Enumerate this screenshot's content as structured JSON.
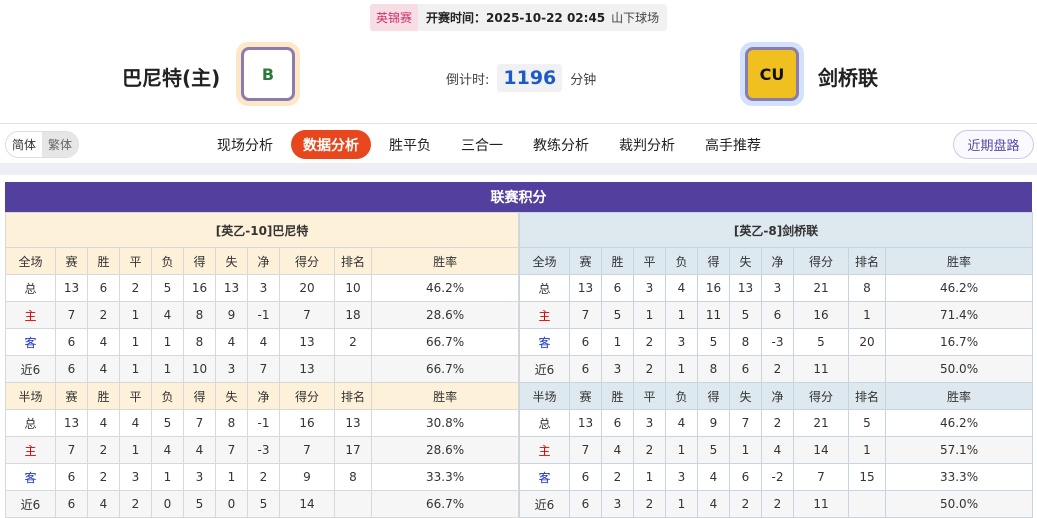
{
  "match": {
    "league": "英锦赛",
    "time": "开赛时间：2025-10-22 02:45",
    "venue": "山下球场"
  },
  "home": {
    "name": "巴尼特(主)",
    "logo": "B"
  },
  "away": {
    "name": "剑桥联",
    "logo": "CU"
  },
  "countdown": {
    "label": "倒计时:",
    "value": "1196",
    "unit": "分钟"
  },
  "lang": {
    "simplified": "简体",
    "traditional": "繁体"
  },
  "nav": [
    "现场分析",
    "数据分析",
    "胜平负",
    "三合一",
    "教练分析",
    "裁判分析",
    "高手推荐"
  ],
  "nav_active": 1,
  "recent": "近期盘路",
  "section_title": "联赛积分",
  "colors": {
    "accent": "#533f9e",
    "active_tab": "#e8461d",
    "home_header": "#fdf1da",
    "away_header": "#dde8ef"
  },
  "columns": [
    "赛",
    "胜",
    "平",
    "负",
    "得",
    "失",
    "净",
    "得分",
    "排名",
    "胜率"
  ],
  "tables": [
    {
      "title": "[英乙-10]巴尼特",
      "blocks": [
        {
          "label": "全场",
          "rows": [
            [
              "总",
              "13",
              "6",
              "2",
              "5",
              "16",
              "13",
              "3",
              "20",
              "10",
              "46.2%"
            ],
            [
              "主",
              "7",
              "2",
              "1",
              "4",
              "8",
              "9",
              "-1",
              "7",
              "18",
              "28.6%"
            ],
            [
              "客",
              "6",
              "4",
              "1",
              "1",
              "8",
              "4",
              "4",
              "13",
              "2",
              "66.7%"
            ],
            [
              "近6",
              "6",
              "4",
              "1",
              "1",
              "10",
              "3",
              "7",
              "13",
              "",
              "66.7%"
            ]
          ]
        },
        {
          "label": "半场",
          "rows": [
            [
              "总",
              "13",
              "4",
              "4",
              "5",
              "7",
              "8",
              "-1",
              "16",
              "13",
              "30.8%"
            ],
            [
              "主",
              "7",
              "2",
              "1",
              "4",
              "4",
              "7",
              "-3",
              "7",
              "17",
              "28.6%"
            ],
            [
              "客",
              "6",
              "2",
              "3",
              "1",
              "3",
              "1",
              "2",
              "9",
              "8",
              "33.3%"
            ],
            [
              "近6",
              "6",
              "4",
              "2",
              "0",
              "5",
              "0",
              "5",
              "14",
              "",
              "66.7%"
            ]
          ]
        }
      ]
    },
    {
      "title": "[英乙-8]剑桥联",
      "blocks": [
        {
          "label": "全场",
          "rows": [
            [
              "总",
              "13",
              "6",
              "3",
              "4",
              "16",
              "13",
              "3",
              "21",
              "8",
              "46.2%"
            ],
            [
              "主",
              "7",
              "5",
              "1",
              "1",
              "11",
              "5",
              "6",
              "16",
              "1",
              "71.4%"
            ],
            [
              "客",
              "6",
              "1",
              "2",
              "3",
              "5",
              "8",
              "-3",
              "5",
              "20",
              "16.7%"
            ],
            [
              "近6",
              "6",
              "3",
              "2",
              "1",
              "8",
              "6",
              "2",
              "11",
              "",
              "50.0%"
            ]
          ]
        },
        {
          "label": "半场",
          "rows": [
            [
              "总",
              "13",
              "6",
              "3",
              "4",
              "9",
              "7",
              "2",
              "21",
              "5",
              "46.2%"
            ],
            [
              "主",
              "7",
              "4",
              "2",
              "1",
              "5",
              "1",
              "4",
              "14",
              "1",
              "57.1%"
            ],
            [
              "客",
              "6",
              "2",
              "1",
              "3",
              "4",
              "6",
              "-2",
              "7",
              "15",
              "33.3%"
            ],
            [
              "近6",
              "6",
              "3",
              "2",
              "1",
              "4",
              "2",
              "2",
              "11",
              "",
              "50.0%"
            ]
          ]
        }
      ]
    }
  ]
}
